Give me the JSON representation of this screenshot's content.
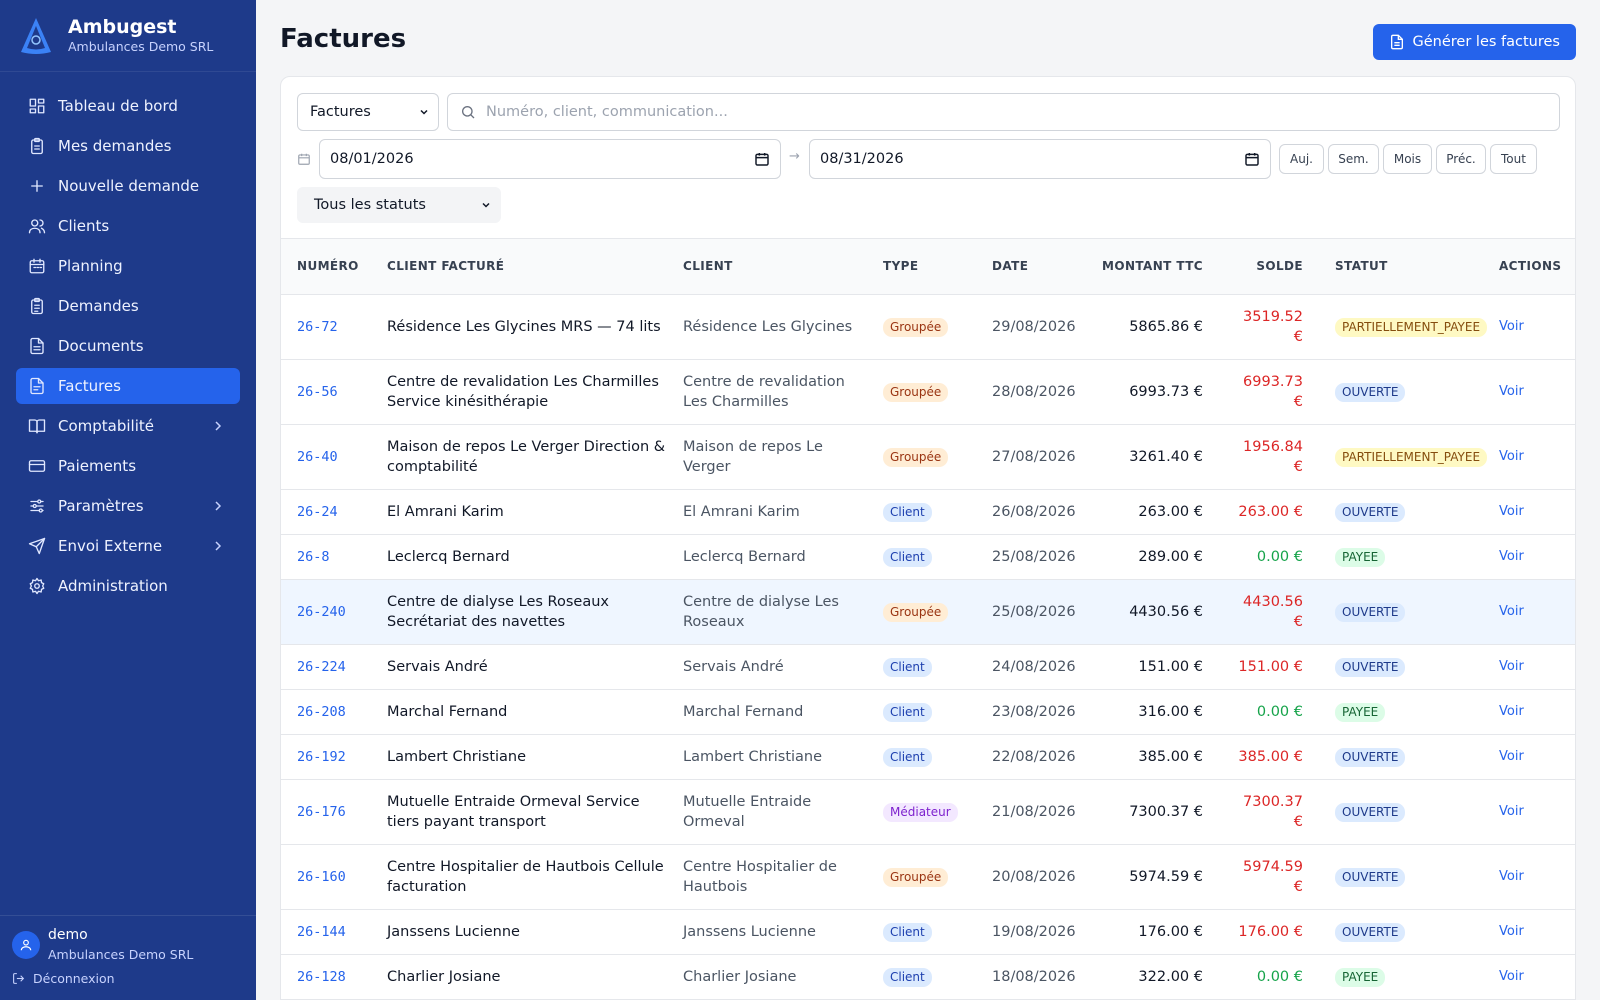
{
  "brand": {
    "name": "Ambugest",
    "subtitle": "Ambulances Demo SRL"
  },
  "sidebar": {
    "items": [
      {
        "label": "Tableau de bord",
        "icon": "dashboard-icon"
      },
      {
        "label": "Mes demandes",
        "icon": "clipboard-icon"
      },
      {
        "label": "Nouvelle demande",
        "icon": "plus-icon"
      },
      {
        "label": "Clients",
        "icon": "users-icon"
      },
      {
        "label": "Planning",
        "icon": "calendar-icon"
      },
      {
        "label": "Demandes",
        "icon": "clipboard-list-icon"
      },
      {
        "label": "Documents",
        "icon": "document-icon"
      },
      {
        "label": "Factures",
        "icon": "invoice-icon",
        "active": true
      },
      {
        "label": "Comptabilité",
        "icon": "book-icon",
        "expandable": true
      },
      {
        "label": "Paiements",
        "icon": "credit-card-icon"
      },
      {
        "label": "Paramètres",
        "icon": "sliders-icon",
        "expandable": true
      },
      {
        "label": "Envoi Externe",
        "icon": "send-icon",
        "expandable": true
      },
      {
        "label": "Administration",
        "icon": "gear-icon"
      }
    ]
  },
  "user": {
    "name": "demo",
    "org": "Ambulances Demo SRL",
    "logout_label": "Déconnexion"
  },
  "header": {
    "title": "Factures",
    "generate_label": "Générer les factures"
  },
  "filters": {
    "type_value": "Factures",
    "search_placeholder": "Numéro, client, communication...",
    "date_from": "08/01/2026",
    "date_to": "08/31/2026",
    "arrow": "→",
    "quick": [
      "Auj.",
      "Sem.",
      "Mois",
      "Préc.",
      "Tout"
    ],
    "status_value": "Tous les statuts"
  },
  "table": {
    "headers": {
      "numero": "Numéro",
      "client_facture": "Client facturé",
      "client": "Client",
      "type": "Type",
      "date": "Date",
      "montant": "Montant TTC",
      "solde": "Solde",
      "statut": "Statut",
      "actions": "Actions"
    },
    "action_label": "Voir",
    "rows": [
      {
        "numero": "26-72",
        "client_facture": "Résidence Les Glycines MRS — 74 lits",
        "client": "Résidence Les Glycines",
        "type": "Groupée",
        "date": "29/08/2026",
        "montant": "5865.86 €",
        "solde": "3519.52 €",
        "statut": "PARTIELLEMENT_PAYEE"
      },
      {
        "numero": "26-56",
        "client_facture": "Centre de revalidation Les Charmilles Service kinésithérapie",
        "client": "Centre de revalidation Les Charmilles",
        "type": "Groupée",
        "date": "28/08/2026",
        "montant": "6993.73 €",
        "solde": "6993.73 €",
        "statut": "OUVERTE"
      },
      {
        "numero": "26-40",
        "client_facture": "Maison de repos Le Verger Direction & comptabilité",
        "client": "Maison de repos Le Verger",
        "type": "Groupée",
        "date": "27/08/2026",
        "montant": "3261.40 €",
        "solde": "1956.84 €",
        "statut": "PARTIELLEMENT_PAYEE"
      },
      {
        "numero": "26-24",
        "client_facture": "El Amrani Karim",
        "client": "El Amrani Karim",
        "type": "Client",
        "date": "26/08/2026",
        "montant": "263.00 €",
        "solde": "263.00 €",
        "statut": "OUVERTE"
      },
      {
        "numero": "26-8",
        "client_facture": "Leclercq Bernard",
        "client": "Leclercq Bernard",
        "type": "Client",
        "date": "25/08/2026",
        "montant": "289.00 €",
        "solde": "0.00 €",
        "statut": "PAYEE"
      },
      {
        "numero": "26-240",
        "client_facture": "Centre de dialyse Les Roseaux Secrétariat des navettes",
        "client": "Centre de dialyse Les Roseaux",
        "type": "Groupée",
        "date": "25/08/2026",
        "montant": "4430.56 €",
        "solde": "4430.56 €",
        "statut": "OUVERTE",
        "highlighted": true
      },
      {
        "numero": "26-224",
        "client_facture": "Servais André",
        "client": "Servais André",
        "type": "Client",
        "date": "24/08/2026",
        "montant": "151.00 €",
        "solde": "151.00 €",
        "statut": "OUVERTE"
      },
      {
        "numero": "26-208",
        "client_facture": "Marchal Fernand",
        "client": "Marchal Fernand",
        "type": "Client",
        "date": "23/08/2026",
        "montant": "316.00 €",
        "solde": "0.00 €",
        "statut": "PAYEE"
      },
      {
        "numero": "26-192",
        "client_facture": "Lambert Christiane",
        "client": "Lambert Christiane",
        "type": "Client",
        "date": "22/08/2026",
        "montant": "385.00 €",
        "solde": "385.00 €",
        "statut": "OUVERTE"
      },
      {
        "numero": "26-176",
        "client_facture": "Mutuelle Entraide Ormeval Service tiers payant transport",
        "client": "Mutuelle Entraide Ormeval",
        "type": "Médiateur",
        "date": "21/08/2026",
        "montant": "7300.37 €",
        "solde": "7300.37 €",
        "statut": "OUVERTE"
      },
      {
        "numero": "26-160",
        "client_facture": "Centre Hospitalier de Hautbois Cellule facturation",
        "client": "Centre Hospitalier de Hautbois",
        "type": "Groupée",
        "date": "20/08/2026",
        "montant": "5974.59 €",
        "solde": "5974.59 €",
        "statut": "OUVERTE"
      },
      {
        "numero": "26-144",
        "client_facture": "Janssens Lucienne",
        "client": "Janssens Lucienne",
        "type": "Client",
        "date": "19/08/2026",
        "montant": "176.00 €",
        "solde": "176.00 €",
        "statut": "OUVERTE"
      },
      {
        "numero": "26-128",
        "client_facture": "Charlier Josiane",
        "client": "Charlier Josiane",
        "type": "Client",
        "date": "18/08/2026",
        "montant": "322.00 €",
        "solde": "0.00 €",
        "statut": "PAYEE"
      }
    ]
  },
  "colors": {
    "sidebar_bg": "#1e3a8a",
    "accent": "#2563eb",
    "danger": "#dc2626",
    "success": "#16a34a"
  }
}
